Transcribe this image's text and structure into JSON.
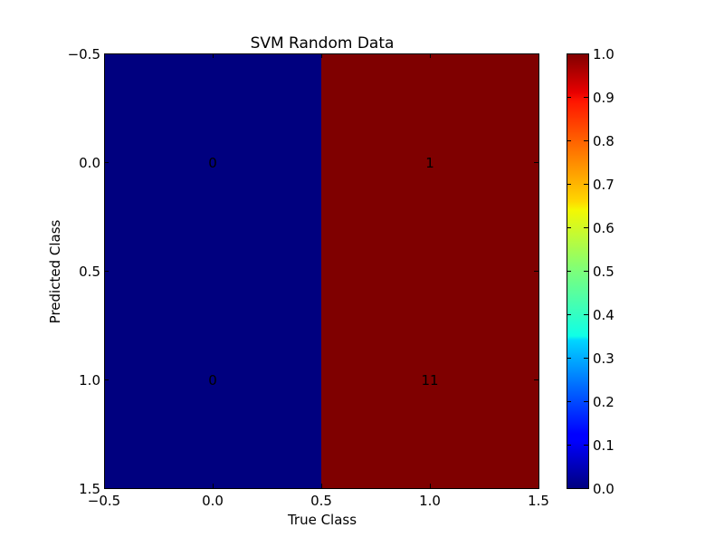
{
  "chart_data": {
    "type": "heatmap",
    "title": "SVM Random Data",
    "xlabel": "True Class",
    "ylabel": "Predicted Class",
    "xlim": [
      -0.5,
      1.5
    ],
    "ylim": [
      1.5,
      -0.5
    ],
    "xticks": [
      "−0.5",
      "0.0",
      "0.5",
      "1.0",
      "1.5"
    ],
    "yticks": [
      "−0.5",
      "0.0",
      "0.5",
      "1.0",
      "1.5"
    ],
    "columns": [
      0,
      1
    ],
    "rows": [
      0,
      1
    ],
    "cells": [
      {
        "row": 0,
        "col": 0,
        "value": 0,
        "label": "0"
      },
      {
        "row": 0,
        "col": 1,
        "value": 1,
        "label": "1"
      },
      {
        "row": 1,
        "col": 0,
        "value": 0,
        "label": "0"
      },
      {
        "row": 1,
        "col": 1,
        "value": 11,
        "label": "11"
      }
    ],
    "column_colors": [
      "#00007f",
      "#7f0000"
    ],
    "colormap": "jet",
    "colorbar": {
      "range": [
        0.0,
        1.0
      ],
      "ticks": [
        "0.0",
        "0.1",
        "0.2",
        "0.3",
        "0.4",
        "0.5",
        "0.6",
        "0.7",
        "0.8",
        "0.9",
        "1.0"
      ]
    },
    "grid": false
  }
}
